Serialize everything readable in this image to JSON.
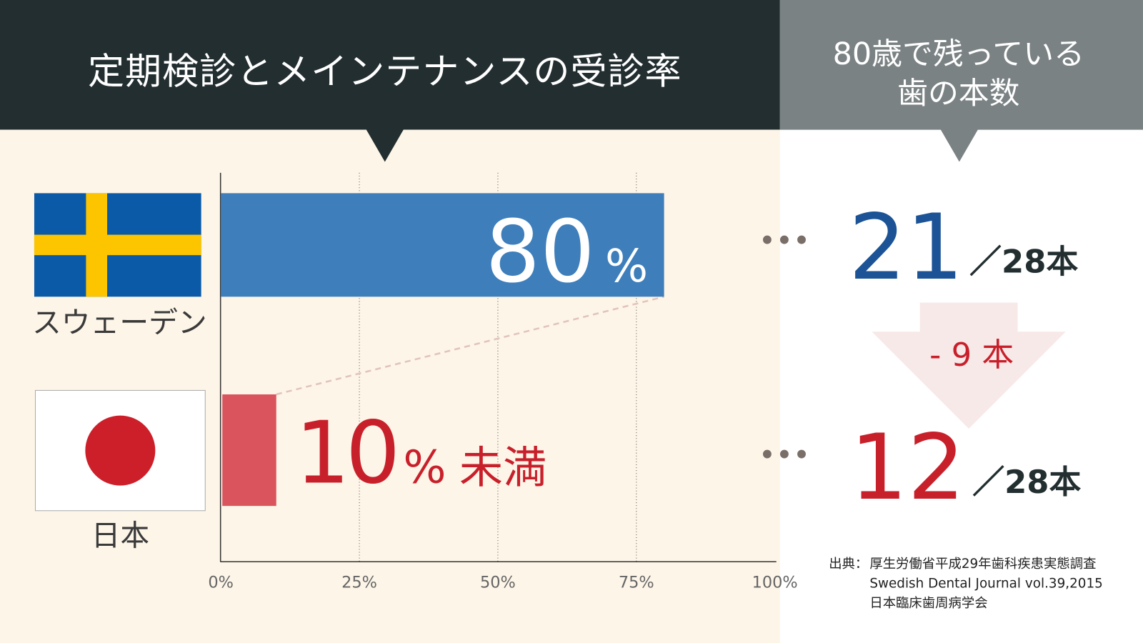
{
  "header": {
    "left_title": "定期検診とメインテナンスの受診率",
    "right_title_line1": "80歳で残っている",
    "right_title_line2": "歯の本数"
  },
  "colors": {
    "header_dark": "#222e30",
    "header_gray": "#7b8284",
    "background_cream": "#fdf5e8",
    "sweden_bar": "#3d7ebb",
    "japan_bar": "#d9545d",
    "sweden_number": "#1b5396",
    "japan_number": "#c8202b",
    "arrow_fill": "#f7e9e8"
  },
  "chart_data": {
    "type": "bar",
    "orientation": "horizontal",
    "categories": [
      "スウェーデン",
      "日本"
    ],
    "values": [
      80,
      10
    ],
    "value_labels": [
      {
        "number": "80",
        "unit": "%",
        "suffix": ""
      },
      {
        "number": "10",
        "unit": "%",
        "suffix": "未満"
      }
    ],
    "xlim": [
      0,
      100
    ],
    "x_ticks": [
      "0%",
      "25%",
      "50%",
      "75%",
      "100%"
    ],
    "grid": "vertical dotted",
    "flags": [
      "sweden-flag",
      "japan-flag"
    ]
  },
  "teeth": {
    "sweden": {
      "count": "21",
      "total": "／28本"
    },
    "japan": {
      "count": "12",
      "total": "／28本"
    },
    "difference": "- 9 本",
    "dots": "•••"
  },
  "source": {
    "label": "出典：",
    "lines": [
      "厚生労働省平成29年歯科疾患実態調査",
      "Swedish Dental Journal vol.39,2015",
      "日本臨床歯周病学会"
    ]
  }
}
